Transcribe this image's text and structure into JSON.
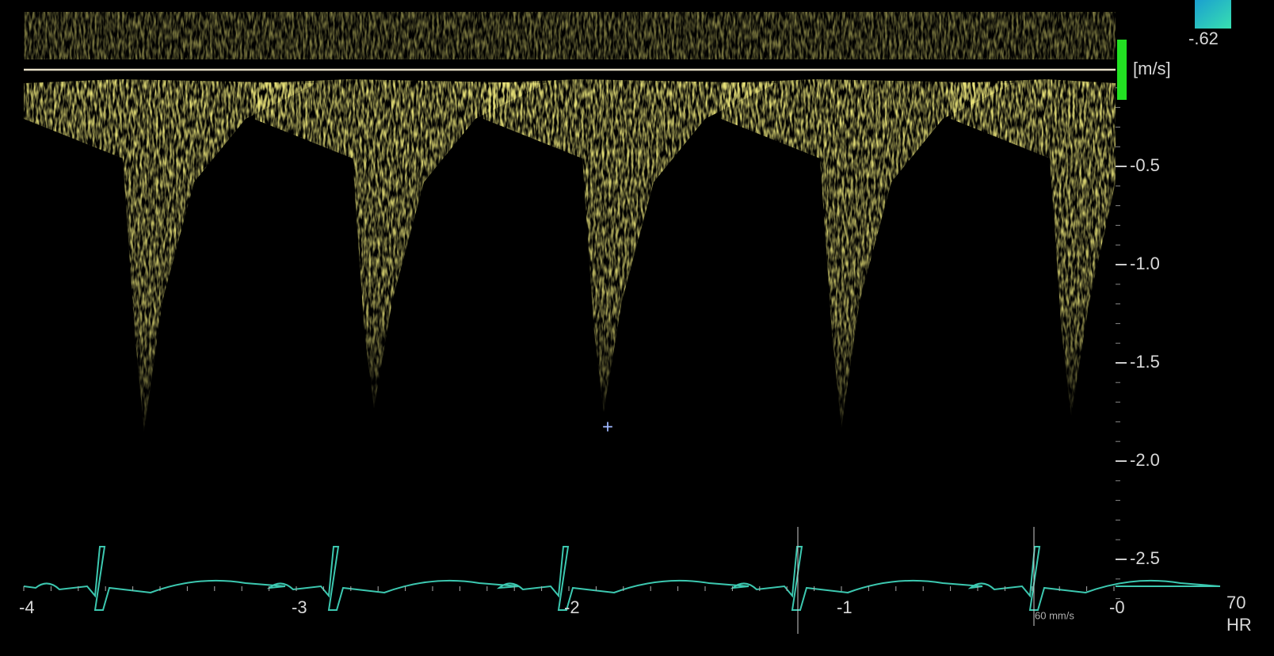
{
  "color_bar": {
    "label": "-.62"
  },
  "velocity_scale": {
    "unit": "[m/s]",
    "ticks": [
      "-0.5",
      "-1.0",
      "-1.5",
      "-2.0",
      "-2.5"
    ]
  },
  "time_scale": {
    "ticks": [
      "-4",
      "-3",
      "-2",
      "-1",
      "-0"
    ]
  },
  "sweep_speed": "60 mm/s",
  "heart_rate": {
    "value": "70",
    "label": "HR"
  }
}
